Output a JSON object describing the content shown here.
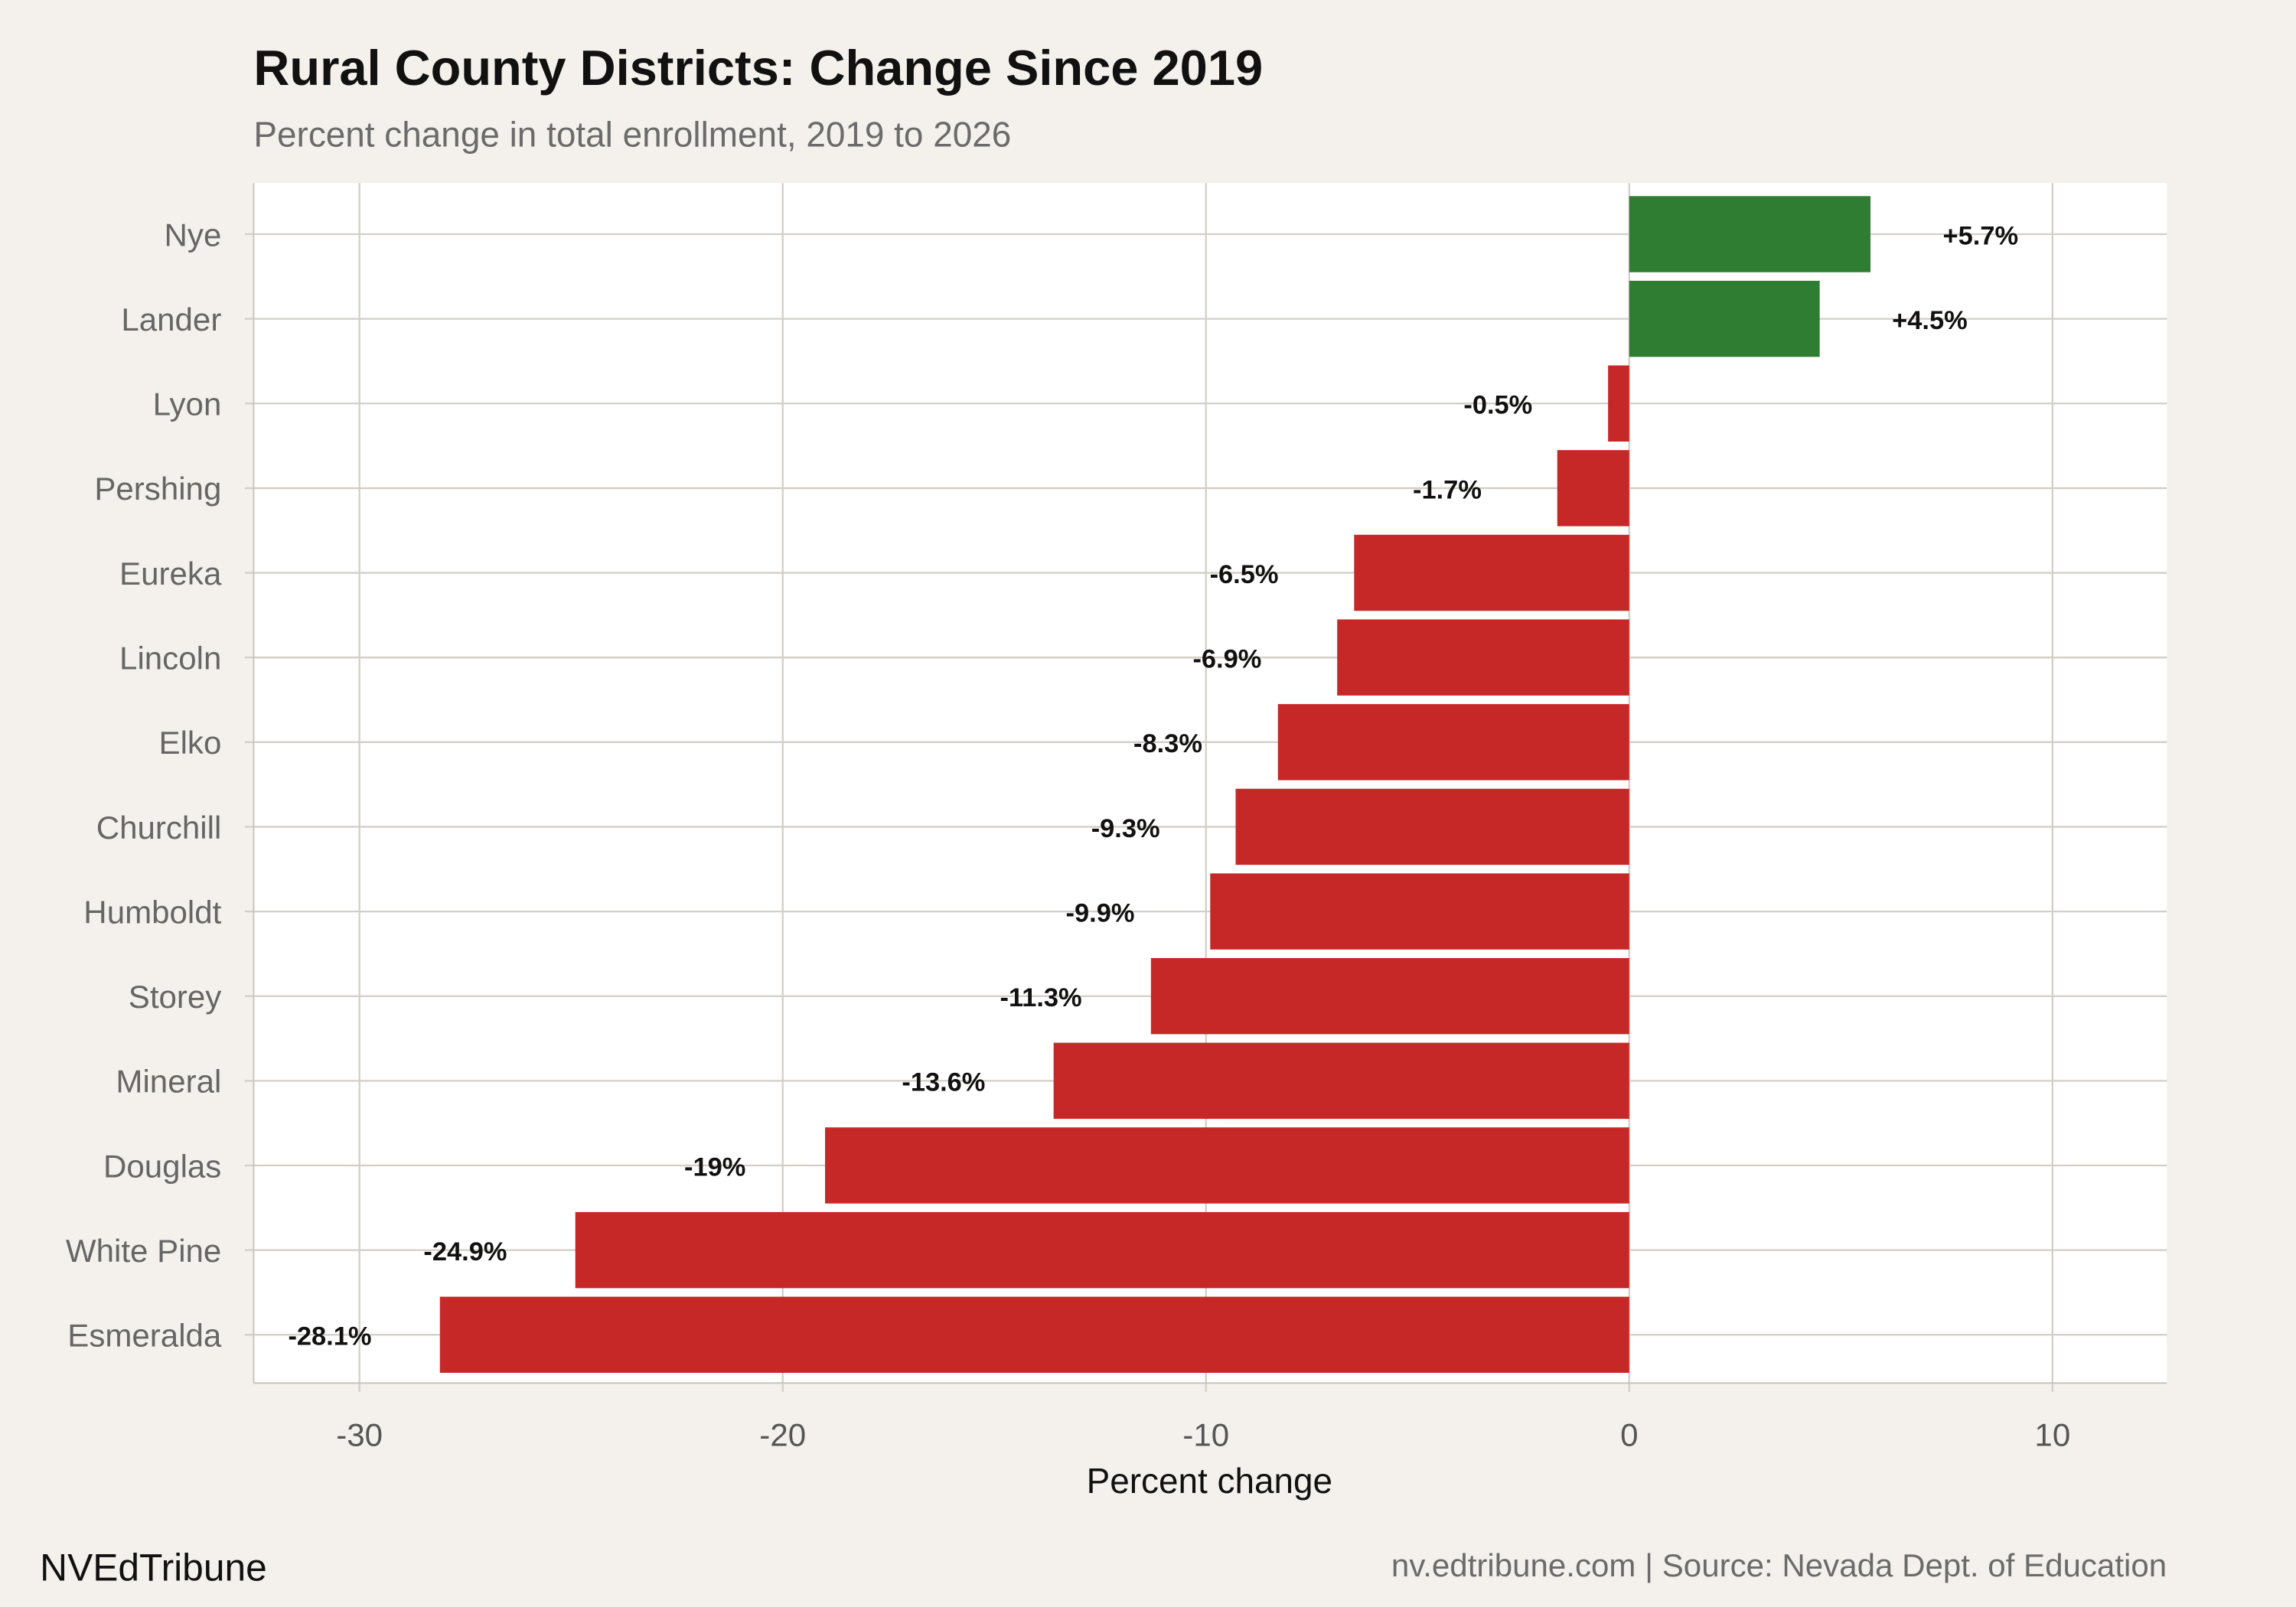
{
  "chart_data": {
    "type": "bar",
    "orientation": "horizontal",
    "title": "Rural County Districts: Change Since 2019",
    "subtitle": "Percent change in total enrollment, 2019 to 2026",
    "xlabel": "Percent change",
    "ylabel": "",
    "xlim": [
      -32.5,
      12.7
    ],
    "xticks": [
      -30,
      -20,
      -10,
      0,
      10
    ],
    "xtick_labels": [
      "-30",
      "-20",
      "-10",
      "0",
      "10"
    ],
    "grid": true,
    "categories": [
      "Nye",
      "Lander",
      "Lyon",
      "Pershing",
      "Eureka",
      "Lincoln",
      "Elko",
      "Churchill",
      "Humboldt",
      "Storey",
      "Mineral",
      "Douglas",
      "White Pine",
      "Esmeralda"
    ],
    "values": [
      5.7,
      4.5,
      -0.5,
      -1.7,
      -6.5,
      -6.9,
      -8.3,
      -9.3,
      -9.9,
      -11.3,
      -13.6,
      -19,
      -24.9,
      -28.1
    ],
    "data_labels": [
      "+5.7%",
      "+4.5%",
      "-0.5%",
      "-1.7%",
      "-6.5%",
      "-6.9%",
      "-8.3%",
      "-9.3%",
      "-9.9%",
      "-11.3%",
      "-13.6%",
      "-19%",
      "-24.9%",
      "-28.1%"
    ],
    "colors": {
      "positive": "#2e7d32",
      "negative": "#c62828",
      "background": "#f4f1ec",
      "panel": "#ffffff",
      "grid": "#d3cfc7"
    }
  },
  "footer": {
    "brand": "NVEdTribune",
    "caption": "nv.edtribune.com | Source: Nevada Dept. of Education"
  }
}
